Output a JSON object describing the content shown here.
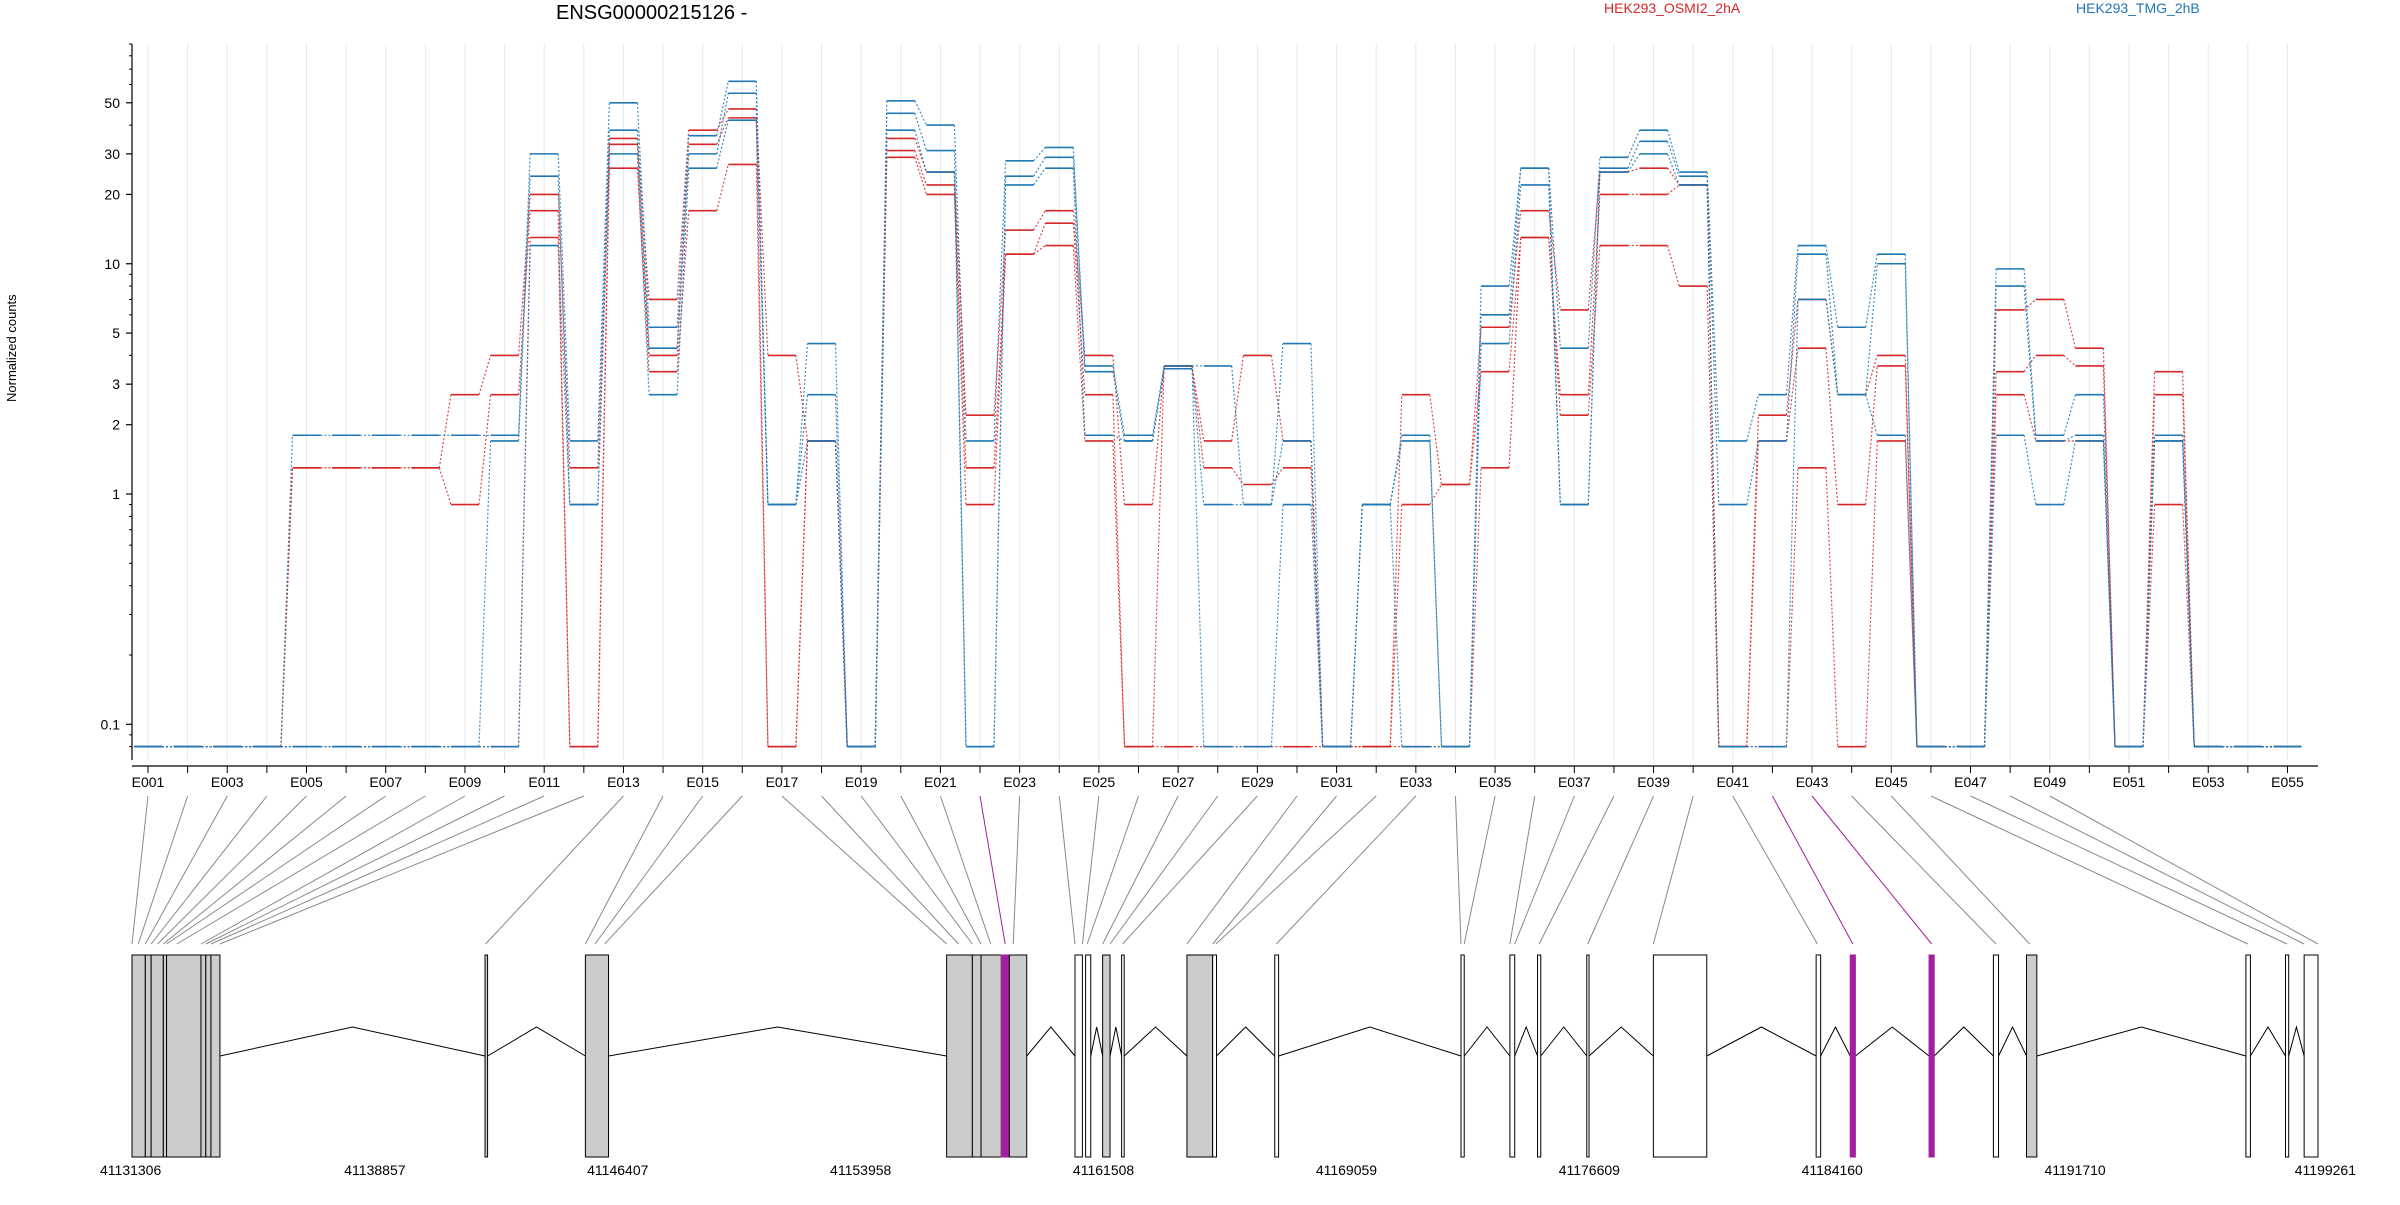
{
  "gene": {
    "title": "ENSG00000215126 -"
  },
  "legend": [
    {
      "label": "HEK293_OSMI2_2hA",
      "color": "#d62728"
    },
    {
      "label": "HEK293_TMG_2hB",
      "color": "#1f77b4"
    }
  ],
  "colors": {
    "grid": "#e8e8e8",
    "exon_fill": "#cccccc",
    "highlight": "#a020a0",
    "connector": "#888888"
  },
  "chart_data": {
    "type": "line",
    "ylabel": "Normalized counts",
    "yscale": "log",
    "ylim": [
      0.07,
      90
    ],
    "yticks": [
      {
        "value": 0.1,
        "label": "0.1"
      },
      {
        "value": 1,
        "label": "1"
      },
      {
        "value": 2,
        "label": "2"
      },
      {
        "value": 3,
        "label": "3"
      },
      {
        "value": 5,
        "label": "5"
      },
      {
        "value": 10,
        "label": "10"
      },
      {
        "value": 20,
        "label": "20"
      },
      {
        "value": 30,
        "label": "30"
      },
      {
        "value": 50,
        "label": "50"
      }
    ],
    "categories": [
      "E001",
      "E002",
      "E003",
      "E004",
      "E005",
      "E006",
      "E007",
      "E008",
      "E009",
      "E010",
      "E011",
      "E012",
      "E013",
      "E014",
      "E015",
      "E016",
      "E017",
      "E018",
      "E019",
      "E020",
      "E021",
      "E022",
      "E023",
      "E024",
      "E025",
      "E026",
      "E027",
      "E028",
      "E029",
      "E030",
      "E031",
      "E032",
      "E033",
      "E034",
      "E035",
      "E036",
      "E037",
      "E038",
      "E039",
      "E040",
      "E041",
      "E042",
      "E043",
      "E044",
      "E045",
      "E046",
      "E047",
      "E048",
      "E049",
      "E050",
      "E051",
      "E052",
      "E053",
      "E054",
      "E055"
    ],
    "tick_labels": [
      "E001",
      "E003",
      "E005",
      "E007",
      "E009",
      "E011",
      "E013",
      "E015",
      "E017",
      "E019",
      "E021",
      "E023",
      "E025",
      "E027",
      "E029",
      "E031",
      "E033",
      "E035",
      "E037",
      "E039",
      "E041",
      "E043",
      "E045",
      "E047",
      "E049",
      "E051",
      "E053",
      "E055"
    ],
    "series": [
      {
        "name": "HEK293_OSMI2_2hA",
        "color": "#d62728",
        "values": [
          0.08,
          0.08,
          0.08,
          0.08,
          1.3,
          1.3,
          1.3,
          1.3,
          2.7,
          4.0,
          20,
          1.3,
          35,
          7.0,
          38,
          47,
          4.0,
          1.7,
          0.08,
          35,
          25,
          2.2,
          14,
          17,
          4.0,
          0.9,
          3.6,
          1.7,
          4.0,
          1.7,
          0.08,
          0.08,
          2.7,
          1.1,
          5.3,
          17,
          6.3,
          25,
          26,
          22,
          0.08,
          2.2,
          7.0,
          2.7,
          4.0,
          0.08,
          0.08,
          6.3,
          7.0,
          4.3,
          0.08,
          3.4,
          0.08,
          0.08,
          0.08
        ]
      },
      {
        "name": "HEK293_OSMI2_2hA",
        "color": "#d62728",
        "values": [
          0.08,
          0.08,
          0.08,
          0.08,
          1.3,
          1.3,
          1.3,
          1.3,
          0.9,
          2.7,
          17,
          0.08,
          33,
          4.0,
          33,
          43,
          0.08,
          1.7,
          0.08,
          31,
          22,
          1.3,
          11,
          15,
          2.7,
          0.08,
          3.6,
          1.3,
          1.1,
          1.3,
          0.08,
          0.08,
          0.9,
          1.1,
          3.4,
          13,
          2.7,
          20,
          20,
          22,
          0.08,
          1.7,
          4.3,
          0.9,
          3.6,
          0.08,
          0.08,
          3.4,
          4.0,
          3.6,
          0.08,
          2.7,
          0.08,
          0.08,
          0.08
        ]
      },
      {
        "name": "HEK293_OSMI2_2hA",
        "color": "#d62728",
        "values": [
          0.08,
          0.08,
          0.08,
          0.08,
          0.08,
          0.08,
          0.08,
          0.08,
          0.08,
          0.08,
          13,
          0.08,
          26,
          3.4,
          17,
          27,
          0.08,
          1.7,
          0.08,
          29,
          20,
          0.9,
          11,
          12,
          1.7,
          0.08,
          0.08,
          0.08,
          0.08,
          0.08,
          0.08,
          0.08,
          0.08,
          0.08,
          1.3,
          13,
          2.2,
          12,
          12,
          8.0,
          0.08,
          0.08,
          1.3,
          0.08,
          1.7,
          0.08,
          0.08,
          2.7,
          1.7,
          1.7,
          0.08,
          0.9,
          0.08,
          0.08,
          0.08
        ]
      },
      {
        "name": "HEK293_TMG_2hB",
        "color": "#1f77b4",
        "values": [
          0.08,
          0.08,
          0.08,
          0.08,
          1.8,
          1.8,
          1.8,
          1.8,
          1.8,
          1.8,
          30,
          1.7,
          50,
          5.3,
          36,
          62,
          0.9,
          4.5,
          0.08,
          51,
          40,
          1.7,
          28,
          32,
          3.6,
          1.8,
          3.6,
          3.6,
          0.9,
          4.5,
          0.08,
          0.9,
          1.8,
          0.08,
          8.0,
          26,
          4.3,
          29,
          38,
          25,
          1.7,
          2.7,
          12,
          5.3,
          11,
          0.08,
          0.08,
          9.5,
          1.8,
          2.7,
          0.08,
          1.8,
          0.08,
          0.08,
          0.08
        ]
      },
      {
        "name": "HEK293_TMG_2hB",
        "color": "#1f77b4",
        "values": [
          0.08,
          0.08,
          0.08,
          0.08,
          0.08,
          0.08,
          0.08,
          0.08,
          0.08,
          1.7,
          24,
          0.9,
          38,
          4.3,
          30,
          55,
          0.9,
          2.7,
          0.08,
          45,
          31,
          0.08,
          24,
          29,
          3.4,
          1.7,
          3.5,
          0.9,
          0.9,
          1.7,
          0.08,
          0.9,
          1.7,
          0.08,
          6.0,
          26,
          0.9,
          26,
          34,
          24,
          0.9,
          1.7,
          11,
          2.7,
          10,
          0.08,
          0.08,
          8.0,
          1.7,
          1.8,
          0.08,
          1.7,
          0.08,
          0.08,
          0.08
        ]
      },
      {
        "name": "HEK293_TMG_2hB",
        "color": "#1f77b4",
        "values": [
          0.08,
          0.08,
          0.08,
          0.08,
          0.08,
          0.08,
          0.08,
          0.08,
          0.08,
          0.08,
          12,
          0.9,
          30,
          2.7,
          26,
          42,
          0.9,
          1.7,
          0.08,
          38,
          25,
          0.08,
          22,
          26,
          1.8,
          1.7,
          3.5,
          0.08,
          0.08,
          0.9,
          0.08,
          0.9,
          0.08,
          0.08,
          4.5,
          22,
          0.9,
          25,
          30,
          22,
          0.08,
          0.08,
          7.0,
          2.7,
          1.8,
          0.08,
          0.08,
          1.8,
          0.9,
          1.7,
          0.08,
          1.7,
          0.08,
          0.08,
          0.08
        ]
      }
    ]
  },
  "gene_model": {
    "coord_min": 41131306,
    "coord_max": 41199261,
    "coord_ticks": [
      "41131306",
      "41138857",
      "41146407",
      "41153958",
      "41161508",
      "41169059",
      "41176609",
      "41184160",
      "41191710",
      "41199261"
    ],
    "exons": [
      {
        "start": 41131306,
        "end": 41131720,
        "fill": "gray"
      },
      {
        "start": 41131720,
        "end": 41131900,
        "fill": "gray"
      },
      {
        "start": 41131900,
        "end": 41132280,
        "fill": "gray"
      },
      {
        "start": 41132280,
        "end": 41132380,
        "fill": "gray"
      },
      {
        "start": 41132380,
        "end": 41133450,
        "fill": "gray"
      },
      {
        "start": 41133450,
        "end": 41133600,
        "fill": "gray"
      },
      {
        "start": 41133600,
        "end": 41133760,
        "fill": "gray"
      },
      {
        "start": 41133760,
        "end": 41134040,
        "fill": "gray"
      },
      {
        "start": 41142280,
        "end": 41142360,
        "fill": "gray"
      },
      {
        "start": 41145400,
        "end": 41146120,
        "fill": "gray"
      },
      {
        "start": 41156630,
        "end": 41157430,
        "fill": "gray"
      },
      {
        "start": 41157430,
        "end": 41157700,
        "fill": "gray"
      },
      {
        "start": 41157700,
        "end": 41158330,
        "fill": "gray"
      },
      {
        "start": 41158330,
        "end": 41158580,
        "fill": "highlight"
      },
      {
        "start": 41158580,
        "end": 41159120,
        "fill": "gray"
      },
      {
        "start": 41160620,
        "end": 41160850,
        "fill": "white"
      },
      {
        "start": 41160950,
        "end": 41161110,
        "fill": "white"
      },
      {
        "start": 41161480,
        "end": 41161710,
        "fill": "gray"
      },
      {
        "start": 41162070,
        "end": 41162150,
        "fill": "white"
      },
      {
        "start": 41164100,
        "end": 41164900,
        "fill": "gray"
      },
      {
        "start": 41164900,
        "end": 41165020,
        "fill": "white"
      },
      {
        "start": 41166830,
        "end": 41166950,
        "fill": "white"
      },
      {
        "start": 41172620,
        "end": 41172720,
        "fill": "white"
      },
      {
        "start": 41174140,
        "end": 41174290,
        "fill": "white"
      },
      {
        "start": 41175000,
        "end": 41175100,
        "fill": "white"
      },
      {
        "start": 41176530,
        "end": 41176600,
        "fill": "white"
      },
      {
        "start": 41178600,
        "end": 41180260,
        "fill": "white"
      },
      {
        "start": 41183660,
        "end": 41183800,
        "fill": "white"
      },
      {
        "start": 41184720,
        "end": 41184880,
        "fill": "highlight"
      },
      {
        "start": 41187170,
        "end": 41187330,
        "fill": "highlight"
      },
      {
        "start": 41189170,
        "end": 41189330,
        "fill": "white"
      },
      {
        "start": 41190200,
        "end": 41190520,
        "fill": "gray"
      },
      {
        "start": 41197020,
        "end": 41197160,
        "fill": "white"
      },
      {
        "start": 41198250,
        "end": 41198350,
        "fill": "white"
      },
      {
        "start": 41198830,
        "end": 41199261,
        "fill": "white"
      }
    ],
    "connectors": [
      {
        "exon": "E001",
        "coord": 41131306,
        "highlight": false
      },
      {
        "exon": "E002",
        "coord": 41131500,
        "highlight": false
      },
      {
        "exon": "E003",
        "coord": 41131720,
        "highlight": false
      },
      {
        "exon": "E004",
        "coord": 41131900,
        "highlight": false
      },
      {
        "exon": "E005",
        "coord": 41132100,
        "highlight": false
      },
      {
        "exon": "E006",
        "coord": 41132280,
        "highlight": false
      },
      {
        "exon": "E007",
        "coord": 41132380,
        "highlight": false
      },
      {
        "exon": "E008",
        "coord": 41132700,
        "highlight": false
      },
      {
        "exon": "E009",
        "coord": 41133450,
        "highlight": false
      },
      {
        "exon": "E010",
        "coord": 41133600,
        "highlight": false
      },
      {
        "exon": "E011",
        "coord": 41133760,
        "highlight": false
      },
      {
        "exon": "E012",
        "coord": 41134040,
        "highlight": false
      },
      {
        "exon": "E013",
        "coord": 41142300,
        "highlight": false
      },
      {
        "exon": "E014",
        "coord": 41145400,
        "highlight": false
      },
      {
        "exon": "E015",
        "coord": 41145700,
        "highlight": false
      },
      {
        "exon": "E016",
        "coord": 41146000,
        "highlight": false
      },
      {
        "exon": "E017",
        "coord": 41156630,
        "highlight": false
      },
      {
        "exon": "E018",
        "coord": 41157000,
        "highlight": false
      },
      {
        "exon": "E019",
        "coord": 41157430,
        "highlight": false
      },
      {
        "exon": "E020",
        "coord": 41157700,
        "highlight": false
      },
      {
        "exon": "E021",
        "coord": 41158000,
        "highlight": false
      },
      {
        "exon": "E022",
        "coord": 41158450,
        "highlight": true
      },
      {
        "exon": "E023",
        "coord": 41158700,
        "highlight": false
      },
      {
        "exon": "E024",
        "coord": 41160620,
        "highlight": false
      },
      {
        "exon": "E025",
        "coord": 41160850,
        "highlight": false
      },
      {
        "exon": "E026",
        "coord": 41161000,
        "highlight": false
      },
      {
        "exon": "E027",
        "coord": 41161480,
        "highlight": false
      },
      {
        "exon": "E028",
        "coord": 41161710,
        "highlight": false
      },
      {
        "exon": "E029",
        "coord": 41162100,
        "highlight": false
      },
      {
        "exon": "E030",
        "coord": 41164100,
        "highlight": false
      },
      {
        "exon": "E031",
        "coord": 41164900,
        "highlight": false
      },
      {
        "exon": "E032",
        "coord": 41165000,
        "highlight": false
      },
      {
        "exon": "E033",
        "coord": 41166880,
        "highlight": false
      },
      {
        "exon": "E034",
        "coord": 41172620,
        "highlight": false
      },
      {
        "exon": "E035",
        "coord": 41172720,
        "highlight": false
      },
      {
        "exon": "E036",
        "coord": 41174140,
        "highlight": false
      },
      {
        "exon": "E037",
        "coord": 41174290,
        "highlight": false
      },
      {
        "exon": "E038",
        "coord": 41175050,
        "highlight": false
      },
      {
        "exon": "E039",
        "coord": 41176560,
        "highlight": false
      },
      {
        "exon": "E040",
        "coord": 41178600,
        "highlight": false
      },
      {
        "exon": "E041",
        "coord": 41183700,
        "highlight": false
      },
      {
        "exon": "E042",
        "coord": 41184800,
        "highlight": true
      },
      {
        "exon": "E043",
        "coord": 41187250,
        "highlight": true
      },
      {
        "exon": "E044",
        "coord": 41189250,
        "highlight": false
      },
      {
        "exon": "E045",
        "coord": 41190300,
        "highlight": false
      },
      {
        "exon": "E046",
        "coord": 41197080,
        "highlight": false
      },
      {
        "exon": "E047",
        "coord": 41198300,
        "highlight": false
      },
      {
        "exon": "E048",
        "coord": 41198830,
        "highlight": false
      },
      {
        "exon": "E049",
        "coord": 41199261,
        "highlight": false
      }
    ]
  }
}
